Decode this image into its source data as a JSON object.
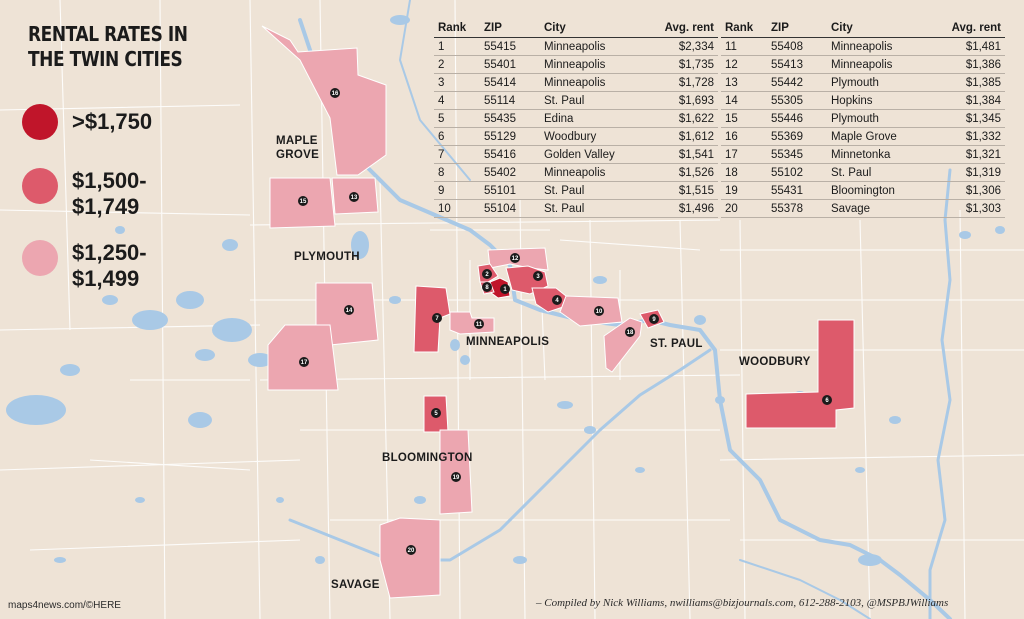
{
  "title": [
    "RENTAL RATES IN",
    "THE TWIN CITIES"
  ],
  "legend": [
    {
      "label": ">$1,750",
      "color": "#c0152a"
    },
    {
      "label": "$1,500-\n$1,749",
      "color": "#dd5a6b"
    },
    {
      "label": "$1,250-\n$1,499",
      "color": "#eca6b0"
    }
  ],
  "table_headers": {
    "rank": "Rank",
    "zip": "ZIP",
    "city": "City",
    "rent": "Avg. rent"
  },
  "rankings": [
    {
      "rank": "1",
      "zip": "55415",
      "city": "Minneapolis",
      "rent": "$2,334"
    },
    {
      "rank": "2",
      "zip": "55401",
      "city": "Minneapolis",
      "rent": "$1,735"
    },
    {
      "rank": "3",
      "zip": "55414",
      "city": "Minneapolis",
      "rent": "$1,728"
    },
    {
      "rank": "4",
      "zip": "55114",
      "city": "St. Paul",
      "rent": "$1,693"
    },
    {
      "rank": "5",
      "zip": "55435",
      "city": "Edina",
      "rent": "$1,622"
    },
    {
      "rank": "6",
      "zip": "55129",
      "city": "Woodbury",
      "rent": "$1,612"
    },
    {
      "rank": "7",
      "zip": "55416",
      "city": "Golden Valley",
      "rent": "$1,541"
    },
    {
      "rank": "8",
      "zip": "55402",
      "city": "Minneapolis",
      "rent": "$1,526"
    },
    {
      "rank": "9",
      "zip": "55101",
      "city": "St. Paul",
      "rent": "$1,515"
    },
    {
      "rank": "10",
      "zip": "55104",
      "city": "St. Paul",
      "rent": "$1,496"
    },
    {
      "rank": "11",
      "zip": "55408",
      "city": "Minneapolis",
      "rent": "$1,481"
    },
    {
      "rank": "12",
      "zip": "55413",
      "city": "Minneapolis",
      "rent": "$1,386"
    },
    {
      "rank": "13",
      "zip": "55442",
      "city": "Plymouth",
      "rent": "$1,385"
    },
    {
      "rank": "14",
      "zip": "55305",
      "city": "Hopkins",
      "rent": "$1,384"
    },
    {
      "rank": "15",
      "zip": "55446",
      "city": "Plymouth",
      "rent": "$1,345"
    },
    {
      "rank": "16",
      "zip": "55369",
      "city": "Maple Grove",
      "rent": "$1,332"
    },
    {
      "rank": "17",
      "zip": "55345",
      "city": "Minnetonka",
      "rent": "$1,321"
    },
    {
      "rank": "18",
      "zip": "55102",
      "city": "St. Paul",
      "rent": "$1,319"
    },
    {
      "rank": "19",
      "zip": "55431",
      "city": "Bloomington",
      "rent": "$1,306"
    },
    {
      "rank": "20",
      "zip": "55378",
      "city": "Savage",
      "rent": "$1,303"
    }
  ],
  "places": {
    "maple_grove": [
      "MAPLE",
      "GROVE"
    ],
    "plymouth": "PLYMOUTH",
    "minneapolis": "MINNEAPOLIS",
    "st_paul": "ST. PAUL",
    "woodbury": "WOODBURY",
    "bloomington": "BLOOMINGTON",
    "savage": "SAVAGE"
  },
  "credit_source": "maps4news.com/©HERE",
  "credit_author": "– Compiled by Nick Williams, nwilliams@bizjournals.com, 612-288-2103, @MSPBJWilliams",
  "colors": {
    "background": "#eee3d6",
    "water": "#a9c9e6",
    "boundary": "#ffffff"
  }
}
